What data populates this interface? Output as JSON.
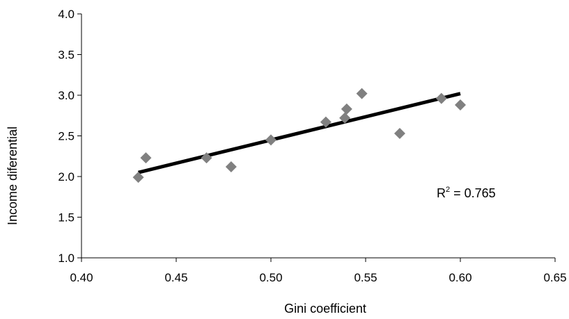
{
  "chart_data": {
    "type": "scatter",
    "title": "",
    "xlabel": "Gini coefficient",
    "ylabel": "Income diferential",
    "xlim": [
      0.4,
      0.65
    ],
    "ylim": [
      1.0,
      4.0
    ],
    "x_ticks": [
      "0.40",
      "0.45",
      "0.50",
      "0.55",
      "0.60",
      "0.65"
    ],
    "y_ticks": [
      "1.0",
      "1.5",
      "2.0",
      "2.5",
      "3.0",
      "3.5",
      "4.0"
    ],
    "grid": false,
    "legend": "none",
    "marker": "diamond",
    "marker_color": "#808080",
    "series": [
      {
        "x": [
          0.43,
          0.434,
          0.466,
          0.479,
          0.5,
          0.529,
          0.539,
          0.54,
          0.548,
          0.568,
          0.59,
          0.6
        ],
        "y": [
          1.99,
          2.23,
          2.23,
          2.12,
          2.45,
          2.67,
          2.72,
          2.83,
          3.02,
          2.53,
          2.96,
          2.88
        ]
      }
    ],
    "trendline": {
      "type": "linear",
      "x": [
        0.43,
        0.6
      ],
      "y": [
        2.05,
        3.02
      ],
      "color": "#000000"
    },
    "annotation": {
      "r_prefix": "R",
      "r_sup": "2",
      "r_value": " = 0.765"
    }
  }
}
